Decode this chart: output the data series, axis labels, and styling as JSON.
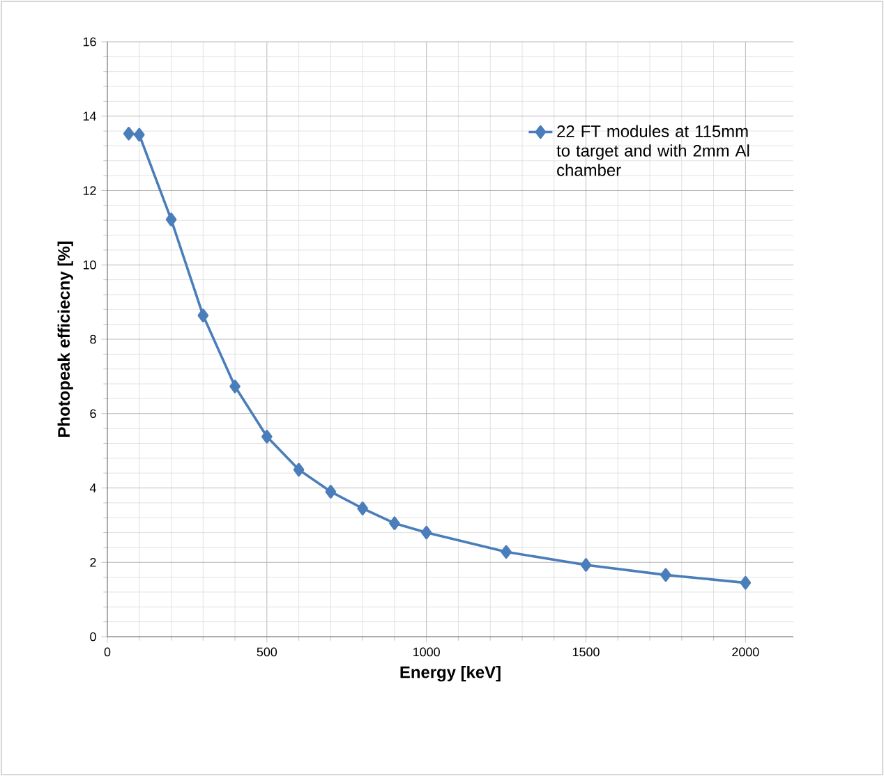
{
  "chart_data": {
    "type": "line",
    "xlabel": "Energy [keV]",
    "ylabel": "Photopeak efficiecny [%]",
    "xlim": [
      0,
      2150
    ],
    "xticks": [
      0,
      500,
      1000,
      1500,
      2000
    ],
    "ylim": [
      0,
      16
    ],
    "yticks": [
      0,
      2,
      4,
      6,
      8,
      10,
      12,
      14,
      16
    ],
    "grid": true,
    "legend": "top right",
    "marker": "diamond",
    "line_style": "solid",
    "series": [
      {
        "name": "22 FT modules at 115mm to target and with 2mm Al chamber",
        "color": "#4a7ebb",
        "x": [
          67,
          100,
          200,
          300,
          400,
          500,
          600,
          700,
          800,
          900,
          1000,
          1250,
          1500,
          1750,
          2000
        ],
        "values": [
          13.53,
          13.5,
          11.22,
          8.64,
          6.73,
          5.38,
          4.49,
          3.9,
          3.45,
          3.05,
          2.8,
          2.28,
          1.93,
          1.66,
          1.45
        ]
      }
    ]
  }
}
